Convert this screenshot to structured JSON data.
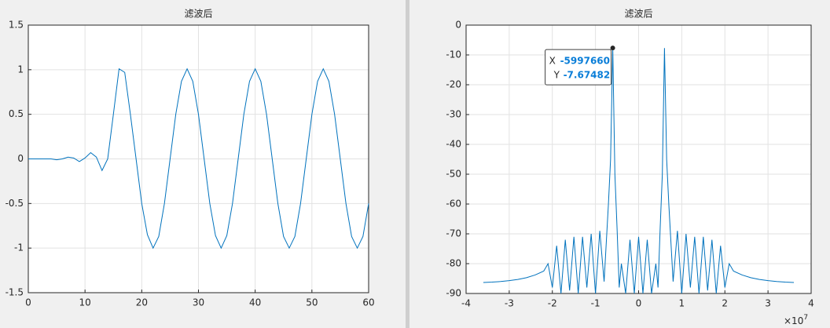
{
  "chart_data": [
    {
      "type": "line",
      "title": "滤波后",
      "color": "#0072bd",
      "grid": true,
      "xlim": [
        0,
        60
      ],
      "xticks": [
        0,
        10,
        20,
        30,
        40,
        50,
        60
      ],
      "ylim": [
        -1.5,
        1.5
      ],
      "yticks": [
        -1.5,
        -1,
        -0.5,
        0,
        0.5,
        1,
        1.5
      ],
      "x": [
        0,
        1,
        2,
        3,
        4,
        5,
        6,
        7,
        8,
        9,
        10,
        11,
        12,
        13,
        14,
        15,
        16,
        17,
        18,
        19,
        20,
        21,
        22,
        23,
        24,
        25,
        26,
        27,
        28,
        29,
        30,
        31,
        32,
        33,
        34,
        35,
        36,
        37,
        38,
        39,
        40,
        41,
        42,
        43,
        44,
        45,
        46,
        47,
        48,
        49,
        50,
        51,
        52,
        53,
        54,
        55,
        56,
        57,
        58,
        59,
        60
      ],
      "values": [
        0,
        0,
        0,
        0,
        0,
        -0.01,
        0,
        0.02,
        0.01,
        -0.03,
        0.01,
        0.07,
        0.02,
        -0.13,
        0,
        0.5,
        1.01,
        0.97,
        0.5,
        0,
        -0.5,
        -0.85,
        -1,
        -0.87,
        -0.5,
        0,
        0.5,
        0.87,
        1.01,
        0.87,
        0.5,
        0,
        -0.5,
        -0.86,
        -1,
        -0.86,
        -0.5,
        0,
        0.5,
        0.87,
        1.01,
        0.87,
        0.5,
        0,
        -0.5,
        -0.87,
        -1,
        -0.87,
        -0.5,
        0,
        0.5,
        0.87,
        1.01,
        0.87,
        0.5,
        0,
        -0.5,
        -0.87,
        -1,
        -0.87,
        -0.5
      ]
    },
    {
      "type": "line",
      "title": "滤波后",
      "color": "#0072bd",
      "grid": true,
      "xlim": [
        -40000000,
        40000000
      ],
      "xticks": [
        {
          "value": -40000000,
          "label": "-4"
        },
        {
          "value": -30000000,
          "label": "-3"
        },
        {
          "value": -20000000,
          "label": "-2"
        },
        {
          "value": -10000000,
          "label": "-1"
        },
        0,
        {
          "value": 10000000,
          "label": "1"
        },
        {
          "value": 20000000,
          "label": "2"
        },
        {
          "value": 30000000,
          "label": "3"
        },
        {
          "value": 40000000,
          "label": "4"
        }
      ],
      "x_multiplier": {
        "base": "×10",
        "exponent": "7"
      },
      "ylim": [
        -90,
        0
      ],
      "yticks": [
        -90,
        -80,
        -70,
        -60,
        -50,
        -40,
        -30,
        -20,
        -10,
        0
      ],
      "x": [
        -36000000,
        -34000000,
        -32000000,
        -30000000,
        -28000000,
        -26000000,
        -24000000,
        -22000000,
        -21000000,
        -20000000,
        -19000000,
        -18000000,
        -17000000,
        -16000000,
        -15000000,
        -14000000,
        -13000000,
        -12000000,
        -11000000,
        -10000000,
        -9000000,
        -8000000,
        -7000000,
        -6500000,
        -5997660,
        -5500000,
        -5000000,
        -4500000,
        -4000000,
        -3000000,
        -2000000,
        -1000000,
        0,
        1000000,
        2000000,
        3000000,
        4000000,
        4500000,
        5000000,
        5500000,
        5997660,
        6500000,
        7000000,
        8000000,
        9000000,
        10000000,
        11000000,
        12000000,
        13000000,
        14000000,
        15000000,
        16000000,
        17000000,
        18000000,
        19000000,
        20000000,
        21000000,
        22000000,
        24000000,
        26000000,
        28000000,
        30000000,
        32000000,
        34000000,
        36000000
      ],
      "values": [
        -86.3,
        -86.2,
        -86,
        -85.7,
        -85.3,
        -84.7,
        -83.8,
        -82.5,
        -80,
        -88,
        -74,
        -90,
        -72,
        -89,
        -71,
        -90,
        -71,
        -88,
        -70,
        -90,
        -69,
        -86,
        -60,
        -45,
        -7.67482,
        -50,
        -68,
        -88,
        -80,
        -90,
        -72,
        -90,
        -71,
        -90,
        -72,
        -90,
        -80,
        -88,
        -68,
        -50,
        -7.7,
        -45,
        -60,
        -86,
        -69,
        -90,
        -70,
        -88,
        -71,
        -90,
        -71,
        -89,
        -72,
        -90,
        -74,
        -88,
        -80,
        -82.5,
        -83.8,
        -84.7,
        -85.3,
        -85.7,
        -86,
        -86.2,
        -86.3
      ],
      "datatip": {
        "x_label": "X",
        "x": -5997660,
        "y_label": "Y",
        "y": -7.67482
      }
    }
  ]
}
